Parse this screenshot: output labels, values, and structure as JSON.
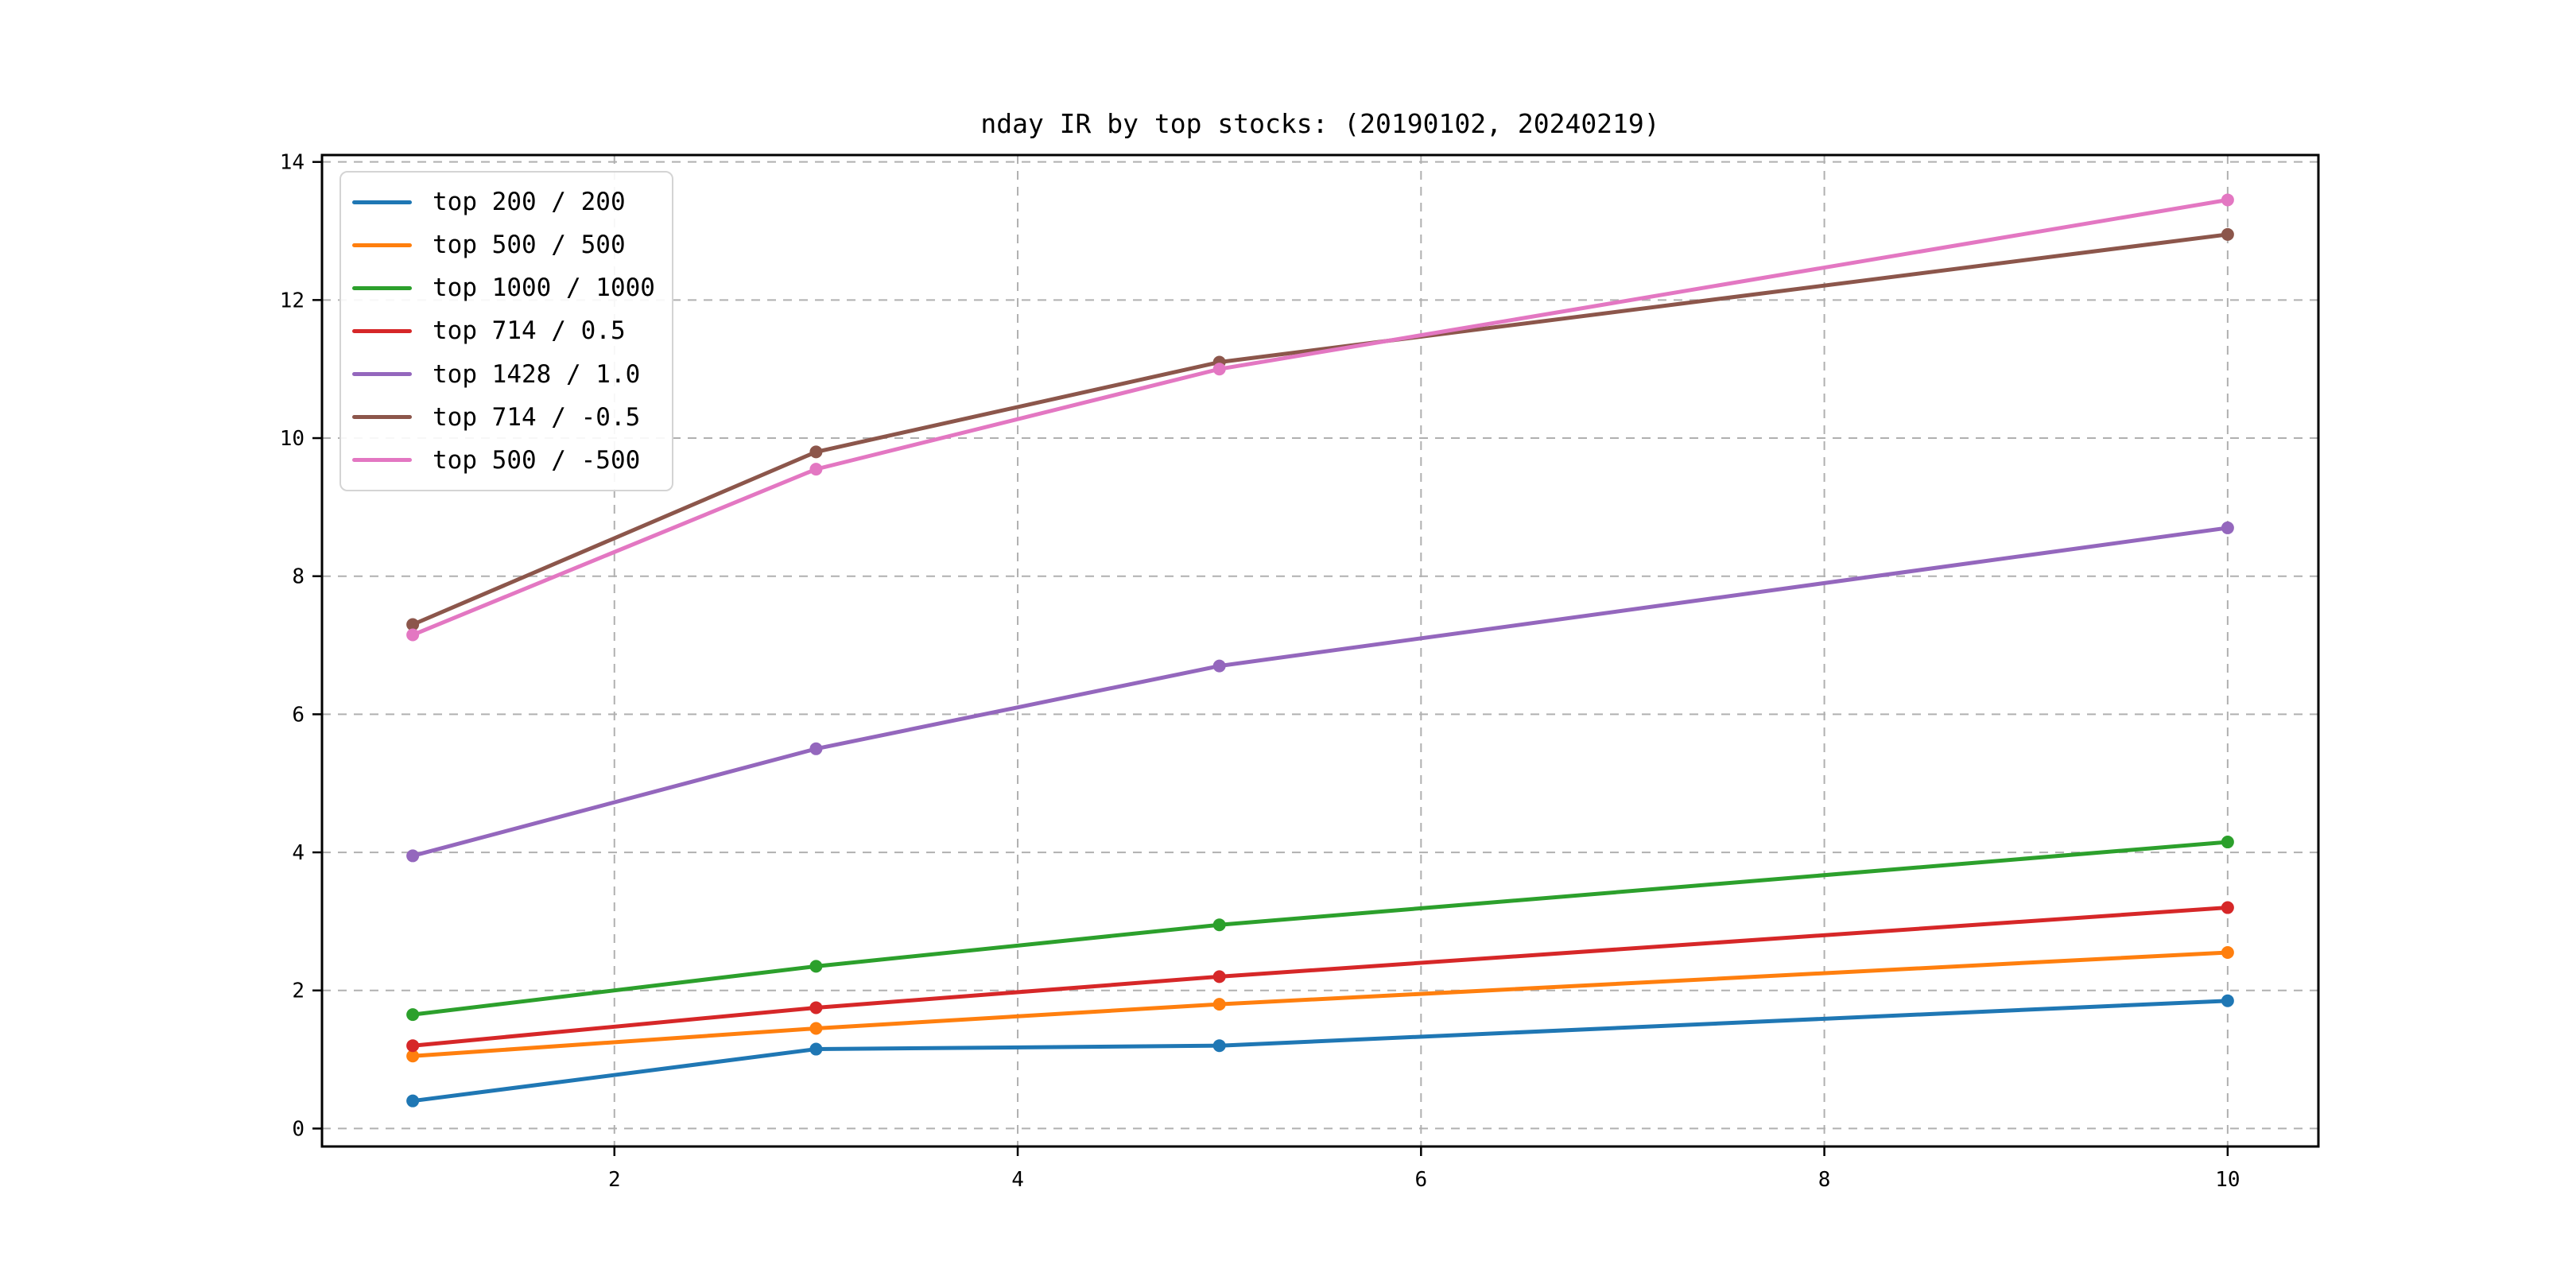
{
  "title": "nday IR by top stocks: (20190102, 20240219)",
  "chart_data": {
    "type": "line",
    "x": [
      1,
      3,
      5,
      10
    ],
    "series": [
      {
        "name": "top 200 / 200",
        "color": "#1f77b4",
        "values": [
          0.4,
          1.15,
          1.2,
          1.85
        ]
      },
      {
        "name": "top 500 / 500",
        "color": "#ff7f0e",
        "values": [
          1.05,
          1.45,
          1.8,
          2.55
        ]
      },
      {
        "name": "top 1000 / 1000",
        "color": "#2ca02c",
        "values": [
          1.65,
          2.35,
          2.95,
          4.15
        ]
      },
      {
        "name": "top 714 / 0.5",
        "color": "#d62728",
        "values": [
          1.2,
          1.75,
          2.2,
          3.2
        ]
      },
      {
        "name": "top 1428 / 1.0",
        "color": "#9467bd",
        "values": [
          3.95,
          5.5,
          6.7,
          8.7
        ]
      },
      {
        "name": "top 714 / -0.5",
        "color": "#8c564b",
        "values": [
          7.3,
          9.8,
          11.1,
          12.95
        ]
      },
      {
        "name": "top 500 / -500",
        "color": "#e377c2",
        "values": [
          7.15,
          9.55,
          11.0,
          13.45
        ]
      }
    ],
    "xticks": [
      "2",
      "4",
      "6",
      "8",
      "10"
    ],
    "yticks": [
      "0",
      "2",
      "4",
      "6",
      "8",
      "10",
      "12",
      "14"
    ],
    "xlim": [
      0.55,
      10.45
    ],
    "ylim": [
      -0.26,
      14.1
    ],
    "grid": true,
    "grid_style": "dashed",
    "legend_position": "upper left",
    "marker": "circle"
  },
  "colors": {
    "background": "#ffffff",
    "grid": "#b0b0b0",
    "spine": "#000000",
    "legend_border": "#d4d4d4"
  }
}
